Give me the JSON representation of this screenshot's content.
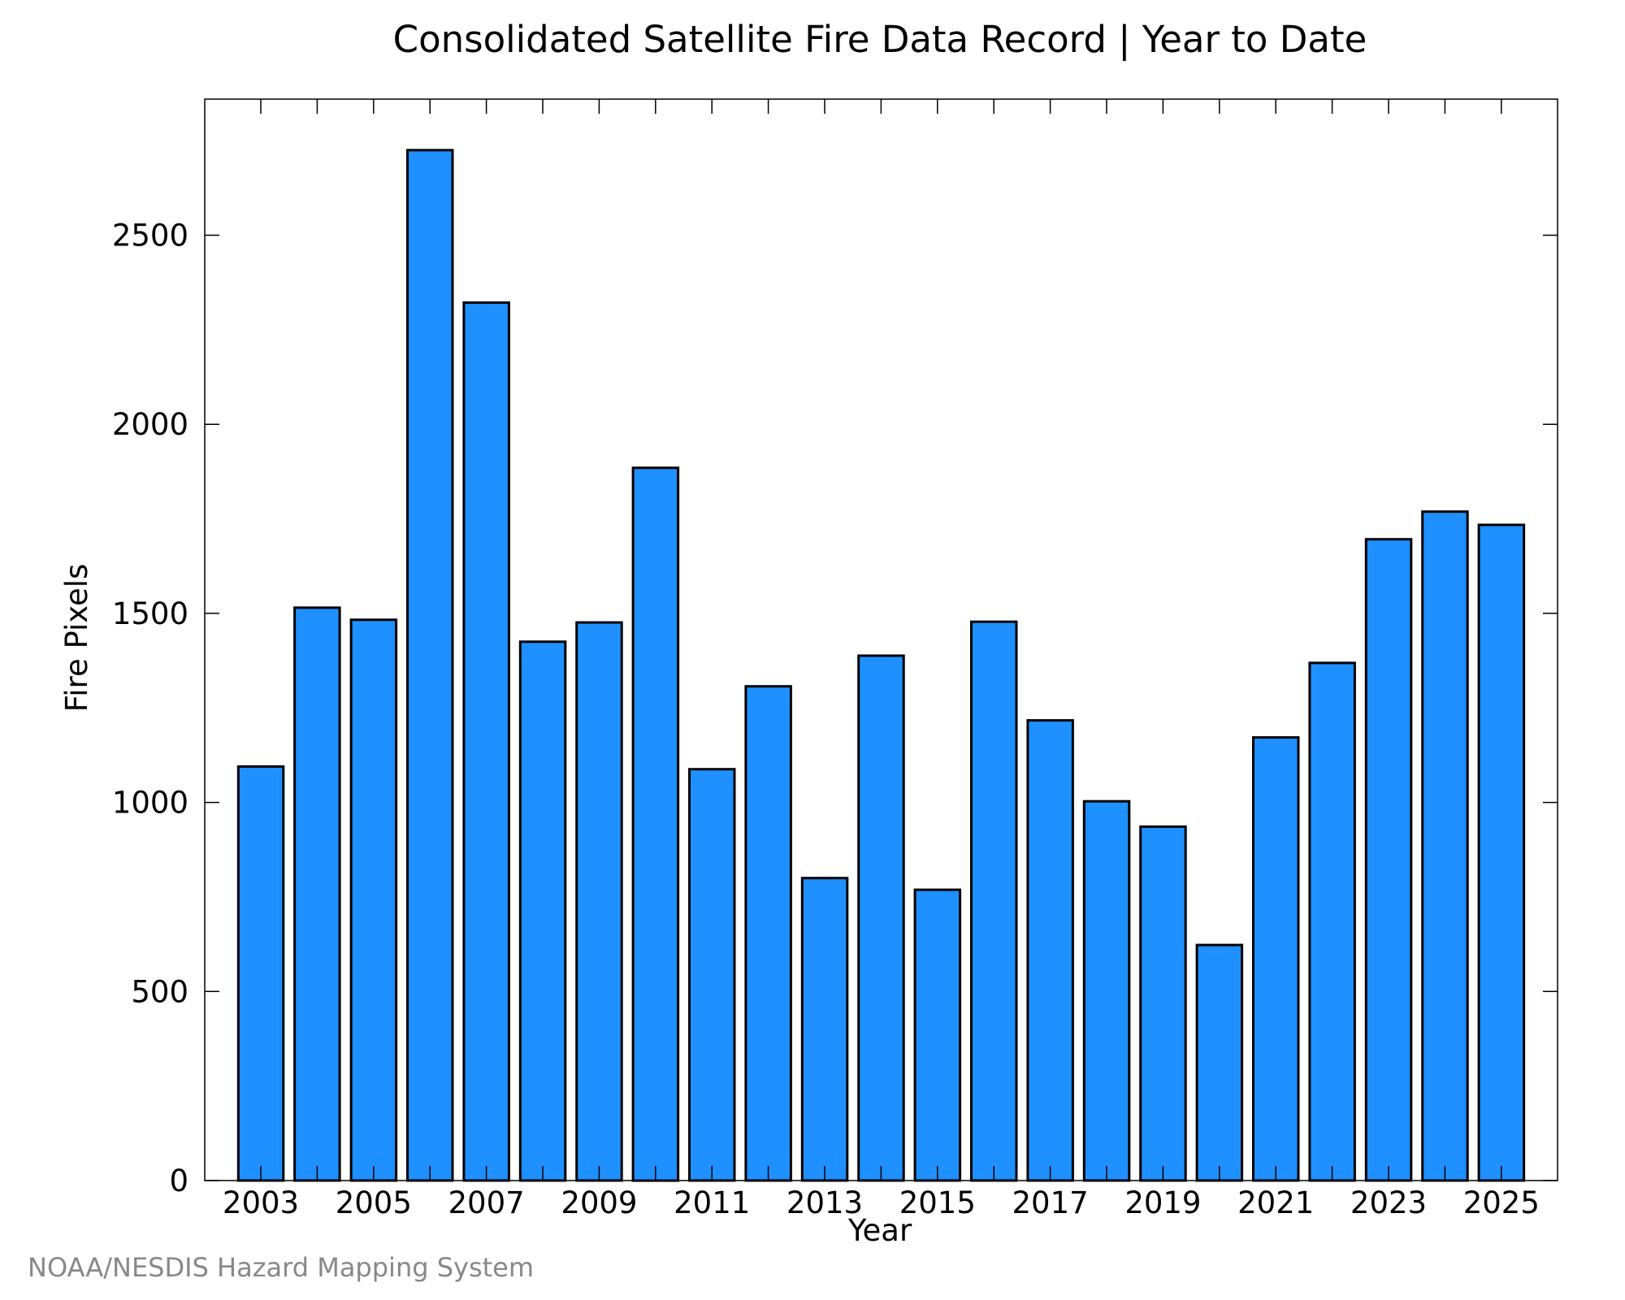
{
  "chart_data": {
    "type": "bar",
    "title": "Consolidated Satellite Fire Data Record | Year to Date",
    "xlabel": "Year",
    "ylabel": "Fire Pixels",
    "categories": [
      "2003",
      "2004",
      "2005",
      "2006",
      "2007",
      "2008",
      "2009",
      "2010",
      "2011",
      "2012",
      "2013",
      "2014",
      "2015",
      "2016",
      "2017",
      "2018",
      "2019",
      "2020",
      "2021",
      "2022",
      "2023",
      "2024",
      "2025"
    ],
    "values": [
      1095,
      1515,
      1483,
      2725,
      2322,
      1425,
      1476,
      1885,
      1088,
      1307,
      800,
      1388,
      769,
      1478,
      1217,
      1003,
      936,
      623,
      1172,
      1369,
      1696,
      1769,
      1734
    ],
    "xtick_labels": [
      "2003",
      "2005",
      "2007",
      "2009",
      "2011",
      "2013",
      "2015",
      "2017",
      "2019",
      "2021",
      "2023",
      "2025"
    ],
    "yticks": [
      0,
      500,
      1000,
      1500,
      2000,
      2500
    ],
    "ylim": [
      0,
      2860
    ],
    "bar_color": "#1e90ff",
    "grid": false,
    "legend": "none"
  },
  "credit": "NOAA/NESDIS Hazard Mapping System"
}
